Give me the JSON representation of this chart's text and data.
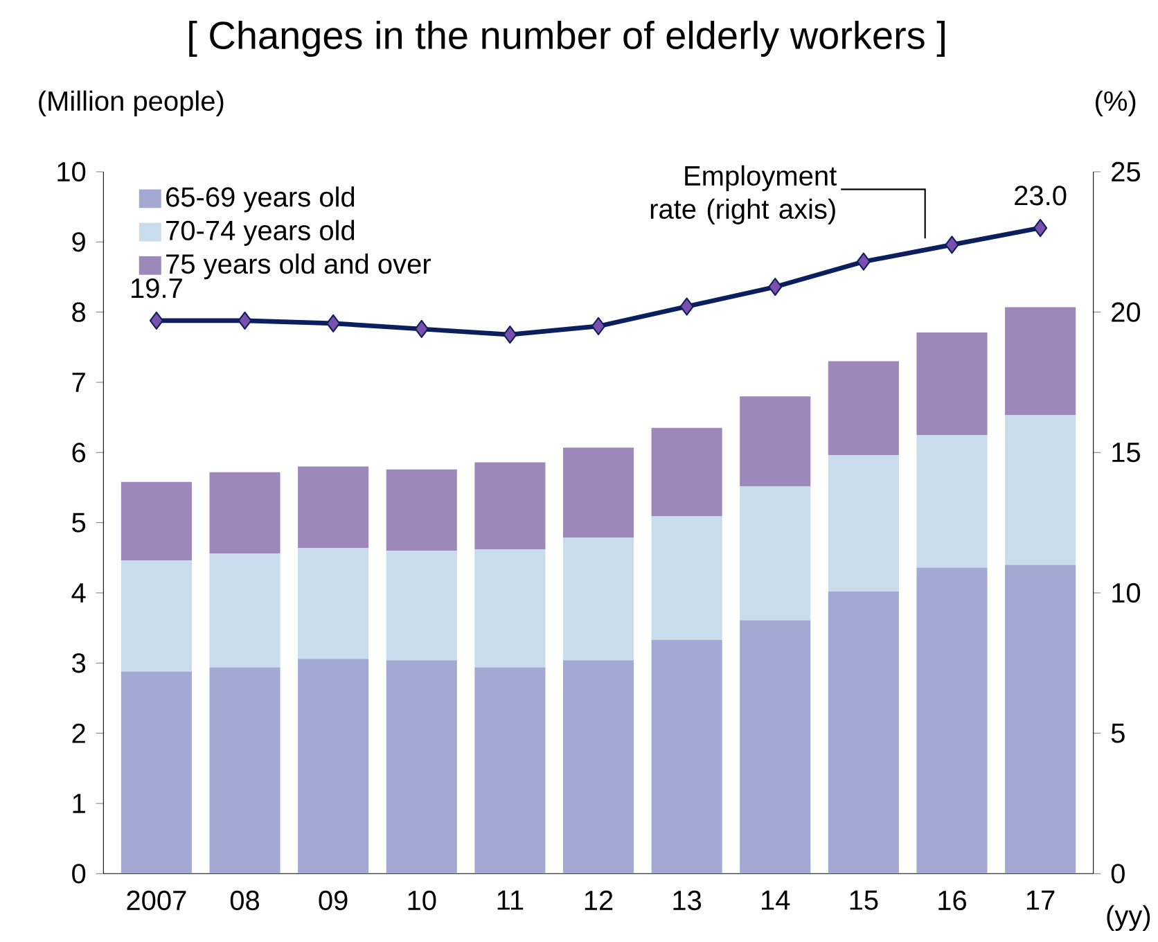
{
  "chart_data": {
    "type": "bar",
    "title": "[ Changes in the number of elderly workers ]",
    "xlabel": "(yy)",
    "ylabel": "(Million people)",
    "y2label": "(%)",
    "categories": [
      "2007",
      "08",
      "09",
      "10",
      "11",
      "12",
      "13",
      "14",
      "15",
      "16",
      "17"
    ],
    "stacked": true,
    "legend": "top left",
    "ylim": [
      0,
      10
    ],
    "yticks": [
      0,
      1,
      2,
      3,
      4,
      5,
      6,
      7,
      8,
      9,
      10
    ],
    "y2lim": [
      0,
      25
    ],
    "y2ticks": [
      0,
      5,
      10,
      15,
      20,
      25
    ],
    "series": [
      {
        "name": "65-69 years old",
        "color": "#a3a9d3",
        "values": [
          2.88,
          2.94,
          3.06,
          3.04,
          2.94,
          3.04,
          3.33,
          3.61,
          4.02,
          4.36,
          4.4
        ]
      },
      {
        "name": "70-74 years old",
        "color": "#c9dcec",
        "values": [
          1.58,
          1.62,
          1.58,
          1.56,
          1.68,
          1.75,
          1.76,
          1.91,
          1.94,
          1.89,
          2.13
        ]
      },
      {
        "name": "75 years old and over",
        "color": "#9d89b9",
        "values": [
          1.12,
          1.16,
          1.16,
          1.16,
          1.24,
          1.28,
          1.26,
          1.28,
          1.34,
          1.46,
          1.54
        ]
      },
      {
        "type": "line",
        "axis": "y2",
        "color": "#0b1f5e",
        "marker": "diamond",
        "values": [
          19.7,
          19.7,
          19.6,
          19.4,
          19.2,
          19.5,
          20.2,
          20.9,
          21.8,
          22.4,
          23.0
        ],
        "value_labels": [
          "19.7",
          null,
          null,
          null,
          null,
          null,
          null,
          null,
          null,
          null,
          "23.0"
        ]
      }
    ],
    "annotations": [
      "Employment rate (right axis)"
    ]
  }
}
